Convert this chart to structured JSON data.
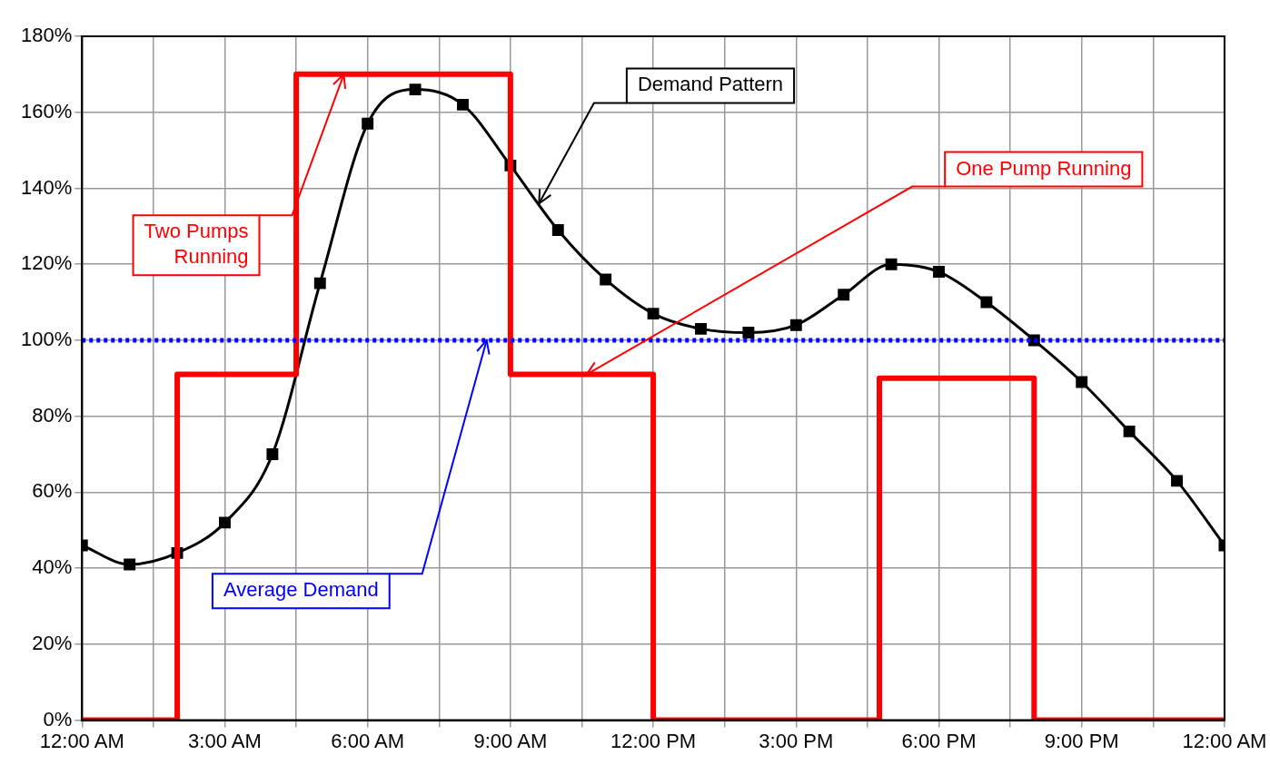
{
  "chart_data": {
    "type": "line",
    "xlim": [
      0,
      24
    ],
    "ylim": [
      0,
      180
    ],
    "xticks": [
      {
        "value": 0,
        "label": "12:00 AM"
      },
      {
        "value": 1.5,
        "label": null
      },
      {
        "value": 3,
        "label": "3:00 AM"
      },
      {
        "value": 4.5,
        "label": null
      },
      {
        "value": 6,
        "label": "6:00 AM"
      },
      {
        "value": 7.5,
        "label": null
      },
      {
        "value": 9,
        "label": "9:00 AM"
      },
      {
        "value": 10.5,
        "label": null
      },
      {
        "value": 12,
        "label": "12:00 PM"
      },
      {
        "value": 13.5,
        "label": null
      },
      {
        "value": 15,
        "label": "3:00 PM"
      },
      {
        "value": 16.5,
        "label": null
      },
      {
        "value": 18,
        "label": "6:00 PM"
      },
      {
        "value": 19.5,
        "label": null
      },
      {
        "value": 21,
        "label": "9:00 PM"
      },
      {
        "value": 22.5,
        "label": null
      },
      {
        "value": 24,
        "label": "12:00 AM"
      }
    ],
    "yticks": [
      {
        "value": 0,
        "label": "0%"
      },
      {
        "value": 20,
        "label": "20%"
      },
      {
        "value": 40,
        "label": "40%"
      },
      {
        "value": 60,
        "label": "60%"
      },
      {
        "value": 80,
        "label": "80%"
      },
      {
        "value": 100,
        "label": "100%"
      },
      {
        "value": 120,
        "label": "120%"
      },
      {
        "value": 140,
        "label": "140%"
      },
      {
        "value": 160,
        "label": "160%"
      },
      {
        "value": 180,
        "label": "180%"
      }
    ],
    "grid": true,
    "legend": false,
    "marker": "square",
    "series": [
      {
        "type": "step",
        "color": "#ff0000",
        "marker": "none",
        "x": [
          0,
          2,
          4.5,
          9,
          12,
          16.75,
          20,
          24
        ],
        "values": [
          0,
          91,
          170,
          91,
          0,
          90,
          0,
          0
        ]
      },
      {
        "type": "line",
        "color": "#000000",
        "x": [
          0,
          1,
          2,
          3,
          4,
          5,
          6,
          7,
          8,
          9,
          10,
          11,
          12,
          13,
          14,
          15,
          16,
          17,
          18,
          19,
          20,
          21,
          22,
          23,
          24
        ],
        "values": [
          46,
          41,
          44,
          52,
          70,
          115,
          157,
          166,
          162,
          146,
          129,
          116,
          107,
          103,
          102,
          104,
          112,
          120,
          118,
          110,
          100,
          89,
          76,
          63,
          46
        ]
      }
    ],
    "ref_lines": [
      {
        "axis": "y",
        "value": 100,
        "color": "#0000ff",
        "line_style": "dotted"
      }
    ],
    "annotations": [
      {
        "text": "Demand Pattern",
        "x": 9.6,
        "y": 136
      },
      {
        "text": "One Pump Running",
        "x": 10.6,
        "y": 91
      },
      {
        "text": "Two Pumps Running",
        "x": 5.5,
        "y": 170
      },
      {
        "text": "Average Demand",
        "x": 8.5,
        "y": 100
      }
    ]
  }
}
